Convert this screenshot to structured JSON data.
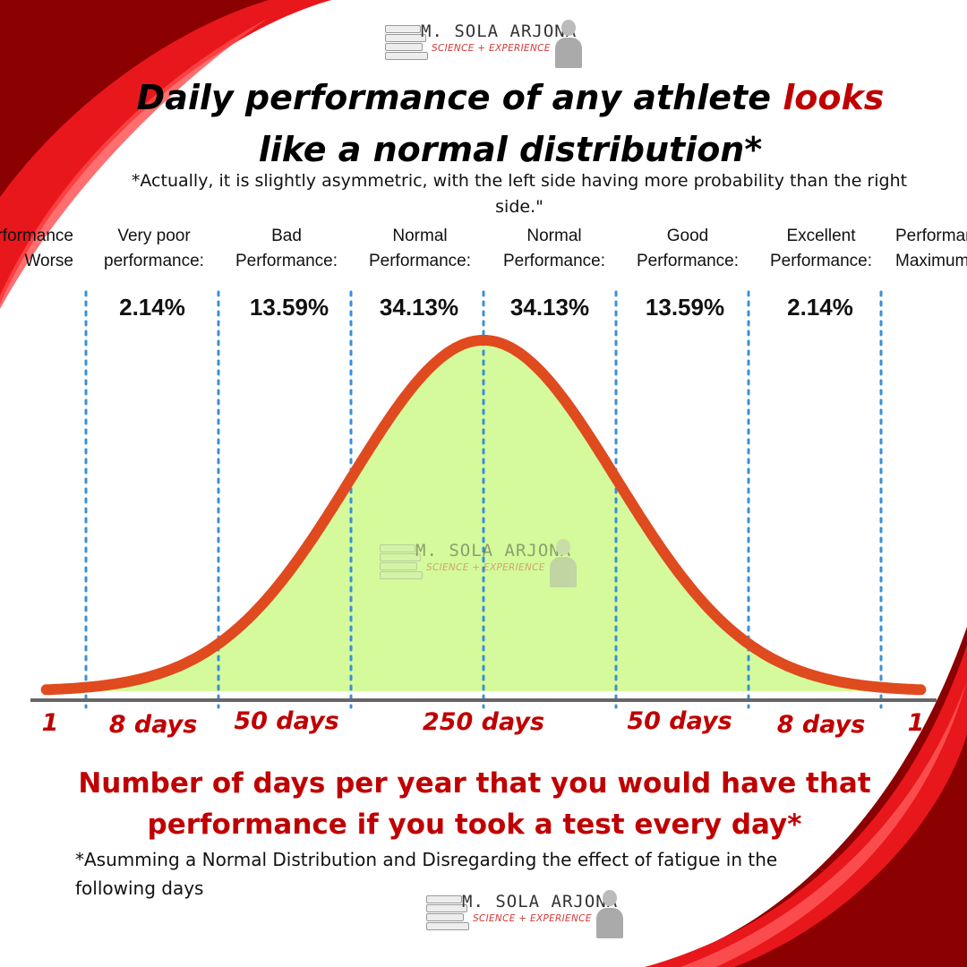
{
  "brand": {
    "name": "M. SOLA ARJONA",
    "tagline": "SCIENCE + EXPERIENCE"
  },
  "title": {
    "part1": "Daily performance of any athlete ",
    "highlight": "looks",
    "part2": " like a normal distribution*"
  },
  "subtitle": "*Actually, it is slightly asymmetric, with the left side having more probability than the right side.\"",
  "categories": [
    {
      "label": "Performance Worse"
    },
    {
      "label": "Very poor performance:"
    },
    {
      "label": "Bad Performance:"
    },
    {
      "label": "Normal Performance:"
    },
    {
      "label": "Normal Performance:"
    },
    {
      "label": "Good Performance:"
    },
    {
      "label": "Excellent Performance:"
    },
    {
      "label": "Performance Maximum"
    }
  ],
  "colors": {
    "accent": "#c00000",
    "curve": "#e04a1f",
    "fill": "#d4fa9c",
    "divider": "#3a8fd8",
    "axis": "#666666",
    "decor_red": "#e8171c",
    "decor_dark": "#8b0000"
  },
  "chart_data": {
    "type": "area",
    "title": "",
    "xlabel": "",
    "ylabel": "",
    "x": [
      -3.3,
      -3,
      -2.5,
      -2,
      -1.5,
      -1,
      -0.5,
      0,
      0.5,
      1,
      1.5,
      2,
      2.5,
      3,
      3.3
    ],
    "series": [
      {
        "values": [
          0.0017,
          0.0044,
          0.0175,
          0.054,
          0.1295,
          0.242,
          0.352,
          0.3989,
          0.352,
          0.242,
          0.1295,
          0.054,
          0.0175,
          0.0044,
          0.0017
        ]
      }
    ],
    "xlim": [
      -3.3,
      3.3
    ],
    "ylim": [
      0,
      0.3989
    ],
    "dividers": [
      -3,
      -2,
      -1,
      0,
      1,
      2,
      3
    ],
    "percentages": [
      "2.14%",
      "13.59%",
      "34.13%",
      "34.13%",
      "13.59%",
      "2.14%"
    ],
    "days_labels": [
      "1",
      "8 days",
      "50 days",
      "250 days",
      "50 days",
      "8 days",
      "1"
    ]
  },
  "footer": {
    "title": "Number of days per year that you would have that performance if you took a test every day*",
    "note": "*Asumming a Normal Distribution and Disregarding the effect of fatigue in the following days"
  }
}
